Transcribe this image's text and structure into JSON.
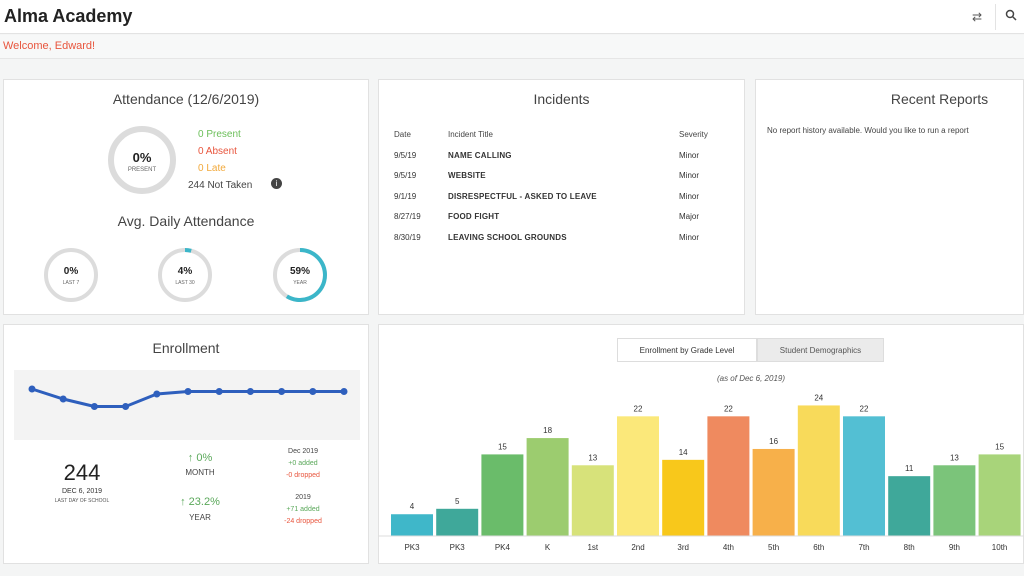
{
  "header": {
    "title": "Alma Academy",
    "welcome": "Welcome, Edward!",
    "icons": [
      "swap-arrows-icon",
      "search-icon"
    ]
  },
  "attendance": {
    "title": "Attendance (12/6/2019)",
    "present_pct": "0%",
    "present_label": "PRESENT",
    "present": "0 Present",
    "absent": "0 Absent",
    "late": "0 Late",
    "not_taken": "244 Not Taken",
    "avg_title": "Avg. Daily Attendance",
    "avg": [
      {
        "value": "0%",
        "label": "LAST 7",
        "fill": 0
      },
      {
        "value": "4%",
        "label": "LAST 30",
        "fill": 0.04
      },
      {
        "value": "59%",
        "label": "YEAR",
        "fill": 0.59
      }
    ],
    "colors": {
      "present": "#6bbf59",
      "absent": "#e8553d",
      "late": "#f2a93b",
      "ring": "#3bb6c9"
    }
  },
  "incidents": {
    "title": "Incidents",
    "headers": [
      "Date",
      "Incident Title",
      "Severity"
    ],
    "rows": [
      {
        "date": "9/5/19",
        "title": "NAME CALLING",
        "severity": "Minor"
      },
      {
        "date": "9/5/19",
        "title": "WEBSITE",
        "severity": "Minor"
      },
      {
        "date": "9/1/19",
        "title": "DISRESPECTFUL - ASKED TO LEAVE",
        "severity": "Minor"
      },
      {
        "date": "8/27/19",
        "title": "FOOD FIGHT",
        "severity": "Major"
      },
      {
        "date": "8/30/19",
        "title": "LEAVING SCHOOL GROUNDS",
        "severity": "Minor"
      }
    ]
  },
  "reports": {
    "title": "Recent Reports",
    "message": "No report history available. Would you like to run a report"
  },
  "enrollment": {
    "title": "Enrollment",
    "count": "244",
    "date": "DEC 6, 2019",
    "date_sub": "LAST DAY OF SCHOOL",
    "month_pct": "↑ 0%",
    "month_label": "MONTH",
    "year_pct": "↑ 23.2%",
    "year_label": "YEAR",
    "dec_label": "Dec 2019",
    "dec_added": "+0 added",
    "dec_dropped": "-0 dropped",
    "yr_label": "2019",
    "yr_added": "+71 added",
    "yr_dropped": "-24 dropped"
  },
  "grade_panel": {
    "tab_active": "Enrollment by Grade Level",
    "tab_inactive": "Student Demographics",
    "as_of": "(as of Dec 6, 2019)"
  },
  "chart_data": [
    {
      "type": "line",
      "title": "Enrollment",
      "values": [
        244,
        240,
        237,
        237,
        242,
        243,
        243,
        243,
        243,
        243,
        243
      ],
      "color": "#2e5fbd"
    },
    {
      "type": "bar",
      "title": "Enrollment by Grade Level",
      "categories": [
        "PK3",
        "PK3",
        "PK4",
        "K",
        "1st",
        "2nd",
        "3rd",
        "4th",
        "5th",
        "6th",
        "7th",
        "8th",
        "9th",
        "10th"
      ],
      "values": [
        4,
        5,
        15,
        18,
        13,
        22,
        14,
        22,
        16,
        24,
        22,
        11,
        13,
        15
      ],
      "colors": [
        "#3fb7c9",
        "#3fa89a",
        "#6abc6a",
        "#9ccc6f",
        "#d7e27a",
        "#fbe87a",
        "#f8c81b",
        "#ef8a5f",
        "#f7b04a",
        "#f8da5a",
        "#53bfd3",
        "#3fa89a",
        "#7bc47a",
        "#a8d47a"
      ],
      "ylim": [
        0,
        25
      ]
    }
  ]
}
